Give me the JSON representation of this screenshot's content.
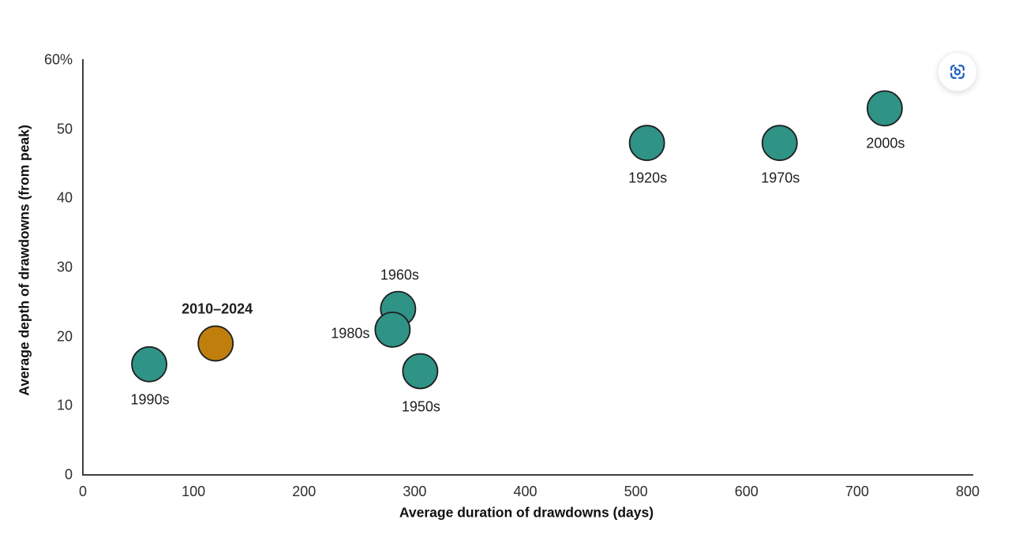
{
  "chart_data": {
    "type": "scatter",
    "title": "",
    "xlabel": "Average duration of drawdowns (days)",
    "ylabel": "Average depth of drawdowns (from peak)",
    "xlim": [
      0,
      800
    ],
    "ylim": [
      0,
      60
    ],
    "grid": false,
    "legend": "none (points labeled directly)",
    "x_ticks": [
      {
        "v": 0,
        "label": "0"
      },
      {
        "v": 100,
        "label": "100"
      },
      {
        "v": 200,
        "label": "200"
      },
      {
        "v": 300,
        "label": "300"
      },
      {
        "v": 400,
        "label": "400"
      },
      {
        "v": 500,
        "label": "500"
      },
      {
        "v": 600,
        "label": "600"
      },
      {
        "v": 700,
        "label": "700"
      },
      {
        "v": 800,
        "label": "800"
      }
    ],
    "y_ticks": [
      {
        "v": 60,
        "label": "60%"
      },
      {
        "v": 50,
        "label": "50"
      },
      {
        "v": 40,
        "label": "40"
      },
      {
        "v": 30,
        "label": "30"
      },
      {
        "v": 20,
        "label": "20"
      },
      {
        "v": 10,
        "label": "10"
      },
      {
        "v": 0,
        "label": "0"
      }
    ],
    "points": [
      {
        "label": "1990s",
        "x": 60,
        "y": 16,
        "series": "decade",
        "label_pos": "below",
        "bold": false
      },
      {
        "label": "2010–2024",
        "x": 120,
        "y": 19,
        "series": "highlight",
        "label_pos": "above",
        "bold": true
      },
      {
        "label": "1960s",
        "x": 285,
        "y": 24,
        "series": "decade",
        "label_pos": "above",
        "bold": false
      },
      {
        "label": "1980s",
        "x": 280,
        "y": 21,
        "series": "decade",
        "label_pos": "left",
        "bold": false
      },
      {
        "label": "1950s",
        "x": 305,
        "y": 15,
        "series": "decade",
        "label_pos": "below",
        "bold": false
      },
      {
        "label": "1920s",
        "x": 510,
        "y": 48,
        "series": "decade",
        "label_pos": "below",
        "bold": false
      },
      {
        "label": "1970s",
        "x": 630,
        "y": 48,
        "series": "decade",
        "label_pos": "below",
        "bold": false
      },
      {
        "label": "2000s",
        "x": 725,
        "y": 53,
        "series": "decade",
        "label_pos": "below",
        "bold": false
      }
    ],
    "colors": {
      "decade": "#2f9386",
      "highlight": "#c07f0d",
      "marker_stroke": "#1f1f1f",
      "axis": "#3f3f3f"
    },
    "marker_radius_px": 22
  },
  "capture_button": {
    "icon": "camera-capture-icon",
    "color": "#1d5fc0"
  }
}
